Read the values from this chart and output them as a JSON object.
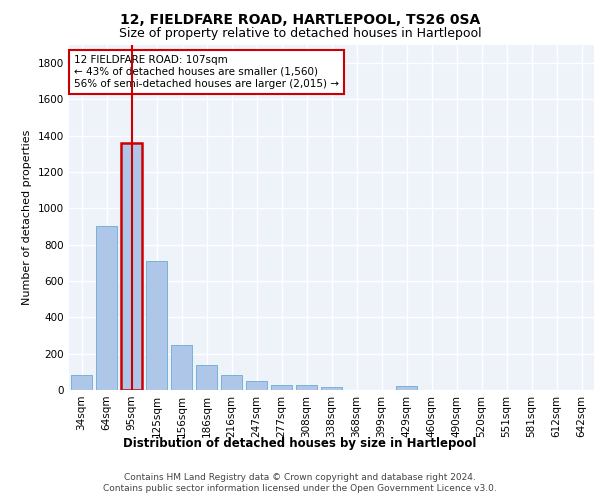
{
  "title1": "12, FIELDFARE ROAD, HARTLEPOOL, TS26 0SA",
  "title2": "Size of property relative to detached houses in Hartlepool",
  "xlabel": "Distribution of detached houses by size in Hartlepool",
  "ylabel": "Number of detached properties",
  "categories": [
    "34sqm",
    "64sqm",
    "95sqm",
    "125sqm",
    "156sqm",
    "186sqm",
    "216sqm",
    "247sqm",
    "277sqm",
    "308sqm",
    "338sqm",
    "368sqm",
    "399sqm",
    "429sqm",
    "460sqm",
    "490sqm",
    "520sqm",
    "551sqm",
    "581sqm",
    "612sqm",
    "642sqm"
  ],
  "values": [
    85,
    905,
    1360,
    710,
    248,
    140,
    85,
    50,
    30,
    28,
    15,
    0,
    0,
    20,
    0,
    0,
    0,
    0,
    0,
    0,
    0
  ],
  "bar_color": "#aec6e8",
  "bar_edge_color": "#6aaad4",
  "highlight_bar_index": 2,
  "highlight_bar_edge_color": "#cc0000",
  "vline_color": "#cc0000",
  "annotation_text": "12 FIELDFARE ROAD: 107sqm\n← 43% of detached houses are smaller (1,560)\n56% of semi-detached houses are larger (2,015) →",
  "annotation_box_color": "#cc0000",
  "ylim": [
    0,
    1900
  ],
  "yticks": [
    0,
    200,
    400,
    600,
    800,
    1000,
    1200,
    1400,
    1600,
    1800
  ],
  "background_color": "#eef2f9",
  "grid_color": "#ffffff",
  "footer1": "Contains HM Land Registry data © Crown copyright and database right 2024.",
  "footer2": "Contains public sector information licensed under the Open Government Licence v3.0.",
  "title1_fontsize": 10,
  "title2_fontsize": 9,
  "xlabel_fontsize": 8.5,
  "ylabel_fontsize": 8,
  "tick_fontsize": 7.5,
  "annotation_fontsize": 7.5,
  "footer_fontsize": 6.5
}
